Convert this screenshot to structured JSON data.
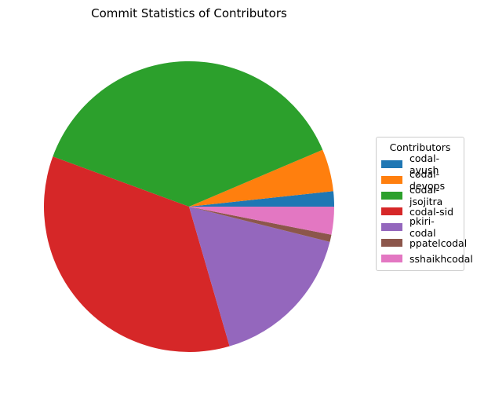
{
  "chart_data": {
    "type": "pie",
    "title": "Commit Statistics of Contributors",
    "legend_title": "Contributors",
    "legend_position": "right",
    "start_angle_deg": 0,
    "direction": "counterclockwise",
    "slices": [
      {
        "label": "codal-ayush",
        "value": 1.7,
        "color": "#1f77b4"
      },
      {
        "label": "codal-devops",
        "value": 4.7,
        "color": "#ff7f0e"
      },
      {
        "label": "codal-jsojitra",
        "value": 38.0,
        "color": "#2ca02c"
      },
      {
        "label": "codal-sid",
        "value": 35.1,
        "color": "#d62728"
      },
      {
        "label": "pkiri-codal",
        "value": 16.6,
        "color": "#9467bd"
      },
      {
        "label": "ppatelcodal",
        "value": 0.8,
        "color": "#8c564b"
      },
      {
        "label": "sshaikhcodal",
        "value": 3.1,
        "color": "#e377c2"
      }
    ]
  }
}
